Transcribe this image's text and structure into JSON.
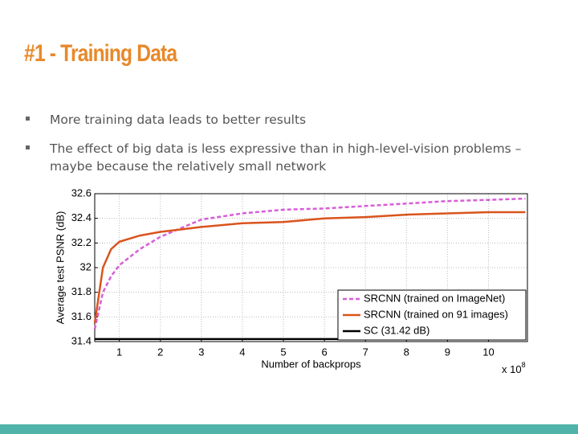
{
  "slide": {
    "title": "#1 - Training Data",
    "bullets": [
      "More training data leads to better results",
      "The effect of big data is less expressive than in high-level-vision problems – maybe because the relatively small network"
    ]
  },
  "chart_data": {
    "type": "line",
    "x_label": "Number of backprops",
    "x_multiplier": {
      "base": "x 10",
      "exponent": "8"
    },
    "y_label": "Average test PSNR (dB)",
    "x": [
      0.4,
      0.6,
      0.8,
      1,
      1.5,
      2,
      2.5,
      3,
      4,
      5,
      6,
      7,
      8,
      9,
      10,
      10.9
    ],
    "series": [
      {
        "name": "SRCNN (trained on ImageNet)",
        "color": "#d65fd6",
        "style": "dashed",
        "values": [
          31.5,
          31.8,
          31.93,
          32.02,
          32.15,
          32.25,
          32.32,
          32.39,
          32.44,
          32.47,
          32.48,
          32.5,
          32.52,
          32.54,
          32.55,
          32.56
        ]
      },
      {
        "name": "SRCNN (trained on 91 images)",
        "color": "#d9541e",
        "style": "solid",
        "values": [
          31.55,
          32.0,
          32.15,
          32.21,
          32.26,
          32.29,
          32.31,
          32.33,
          32.36,
          32.37,
          32.4,
          32.41,
          32.43,
          32.44,
          32.45,
          32.45
        ]
      },
      {
        "name": "SC (31.42 dB)",
        "color": "#000000",
        "style": "solid",
        "values": [
          31.42,
          31.42,
          31.42,
          31.42,
          31.42,
          31.42,
          31.42,
          31.42,
          31.42,
          31.42,
          31.42,
          31.42,
          31.42,
          31.42,
          31.42,
          31.42
        ]
      }
    ],
    "xlim": [
      0.4,
      10.95
    ],
    "ylim": [
      31.4,
      32.6
    ],
    "xticks": [
      1,
      2,
      3,
      4,
      5,
      6,
      7,
      8,
      9,
      10
    ],
    "yticks": [
      31.4,
      31.6,
      31.8,
      32,
      32.2,
      32.4,
      32.6
    ],
    "grid": true,
    "legend": "lower right"
  }
}
